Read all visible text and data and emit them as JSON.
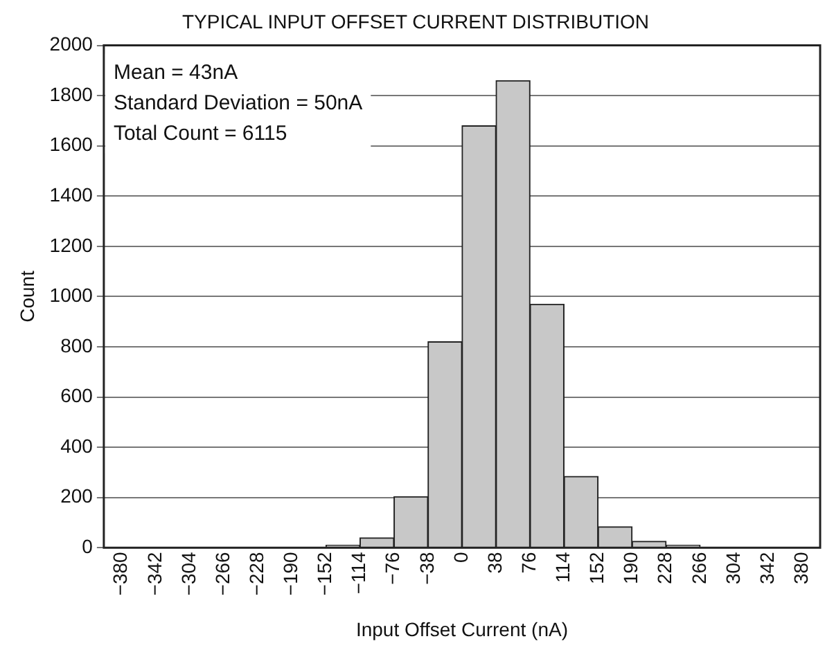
{
  "chart_data": {
    "type": "histogram",
    "title": "TYPICAL INPUT OFFSET CURRENT DISTRIBUTION",
    "xlabel": "Input Offset Current (nA)",
    "ylabel": "Count",
    "bins": [
      -380,
      -342,
      -304,
      -266,
      -228,
      -190,
      -152,
      -114,
      -76,
      -38,
      0,
      38,
      76,
      114,
      152,
      190,
      228,
      266,
      304,
      342,
      380
    ],
    "values": [
      0,
      0,
      0,
      0,
      0,
      0,
      10,
      40,
      204,
      820,
      1680,
      1860,
      970,
      284,
      84,
      26,
      10,
      0,
      0,
      0
    ],
    "color": "#c8c8c8",
    "xlim": [
      -400,
      400
    ],
    "xticks": [
      {
        "value": -380,
        "label": "−380"
      },
      {
        "value": -342,
        "label": "−342"
      },
      {
        "value": -304,
        "label": "−304"
      },
      {
        "value": -266,
        "label": "−266"
      },
      {
        "value": -228,
        "label": "−228"
      },
      {
        "value": -190,
        "label": "−190"
      },
      {
        "value": -152,
        "label": "−152"
      },
      {
        "value": -114,
        "label": "−114"
      },
      {
        "value": -76,
        "label": "−76"
      },
      {
        "value": -38,
        "label": "−38"
      },
      0,
      38,
      76,
      114,
      152,
      190,
      228,
      266,
      304,
      342,
      380
    ],
    "ylim": [
      0,
      2000
    ],
    "yticks": [
      0,
      200,
      400,
      600,
      800,
      1000,
      1200,
      1400,
      1600,
      1800,
      2000
    ],
    "grid": "y",
    "legend": false,
    "annotations": [
      "Mean = 43nA",
      "Standard Deviation = 50nA",
      "Total Count = 6115"
    ]
  }
}
